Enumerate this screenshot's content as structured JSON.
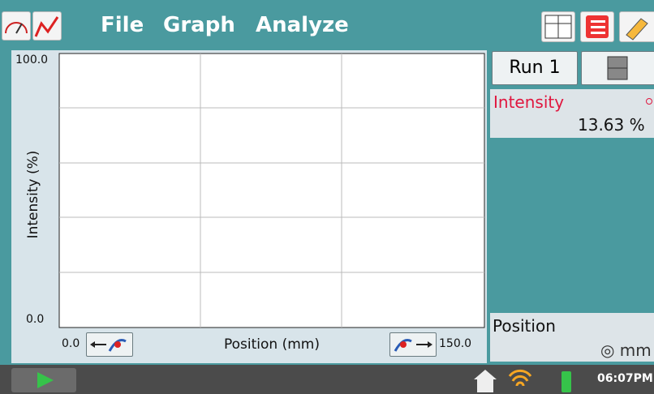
{
  "menu": {
    "items": [
      "File",
      "Graph",
      "Analyze"
    ]
  },
  "graph": {
    "y_axis": {
      "label": "Intensity (%)",
      "max": "100.0",
      "min": "0.0"
    },
    "x_axis": {
      "label": "Position (mm)",
      "min": "0.0",
      "max": "150.0"
    }
  },
  "side_panel": {
    "run": "Run 1",
    "sensors": [
      {
        "name": "Intensity",
        "value": "13.63 %"
      },
      {
        "name": "Position",
        "unit": "◎ mm"
      }
    ]
  },
  "status_bar": {
    "time": "06:07PM"
  }
}
